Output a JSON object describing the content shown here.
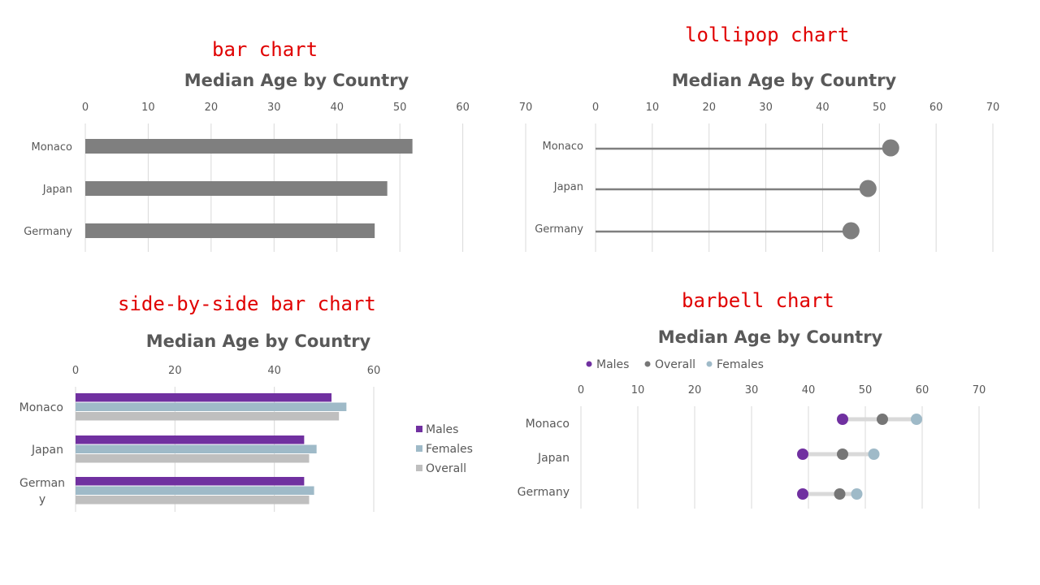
{
  "labels": {
    "bar": "bar chart",
    "lollipop": "lollipop chart",
    "side": "side-by-side bar chart",
    "barbell": "barbell chart"
  },
  "colors": {
    "gray": "#7f7f7f",
    "males": "#7030a0",
    "females": "#9fbac8",
    "overall_light": "#bfbfbf",
    "overall_dark": "#767676",
    "grid": "#d9d9d9",
    "red": "#e00000"
  },
  "chart_data": [
    {
      "id": "bar",
      "type": "bar",
      "title": "Median Age by Country",
      "categories": [
        "Monaco",
        "Japan",
        "Germany"
      ],
      "values": [
        52,
        48,
        46
      ],
      "xlim": [
        0,
        70
      ],
      "ticks": [
        0,
        10,
        20,
        30,
        40,
        50,
        60,
        70
      ]
    },
    {
      "id": "lollipop",
      "type": "lollipop",
      "title": "Median Age by Country",
      "categories": [
        "Monaco",
        "Japan",
        "Germany"
      ],
      "values": [
        52,
        48,
        45
      ],
      "xlim": [
        0,
        70
      ],
      "ticks": [
        0,
        10,
        20,
        30,
        40,
        50,
        60,
        70
      ]
    },
    {
      "id": "side",
      "type": "bar",
      "title": "Median Age by Country",
      "categories": [
        "Monaco",
        "Japan",
        "German y"
      ],
      "xlim": [
        0,
        60
      ],
      "ticks": [
        0,
        20,
        40,
        60
      ],
      "series": [
        {
          "name": "Males",
          "values": [
            51.5,
            46,
            46
          ]
        },
        {
          "name": "Females",
          "values": [
            54.5,
            48.5,
            48
          ]
        },
        {
          "name": "Overall",
          "values": [
            53,
            47,
            47
          ]
        }
      ]
    },
    {
      "id": "barbell",
      "type": "scatter",
      "title": "Median Age by Country",
      "categories": [
        "Monaco",
        "Japan",
        "Germany"
      ],
      "xlim": [
        0,
        70
      ],
      "ticks": [
        0,
        10,
        20,
        30,
        40,
        50,
        60,
        70
      ],
      "legend": "top",
      "series": [
        {
          "name": "Males",
          "values": [
            46,
            39,
            39
          ]
        },
        {
          "name": "Overall",
          "values": [
            53,
            46,
            45.5
          ]
        },
        {
          "name": "Females",
          "values": [
            59,
            51.5,
            48.5
          ]
        }
      ]
    }
  ]
}
